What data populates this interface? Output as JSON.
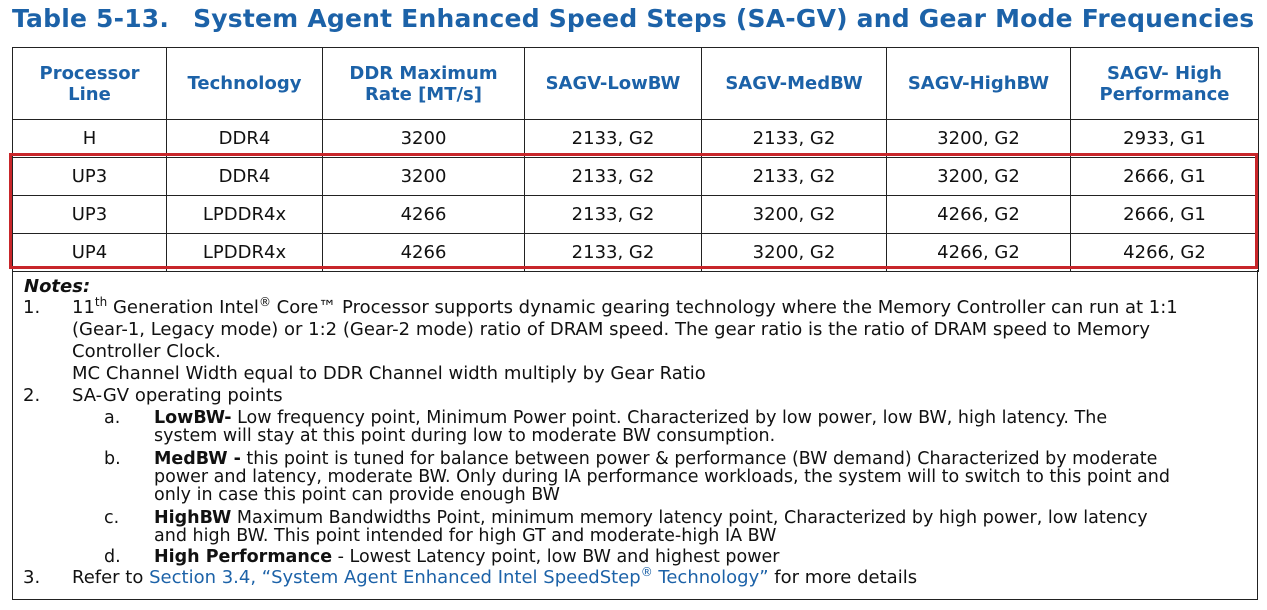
{
  "title": {
    "number": "Table 5-13.",
    "text": "System Agent Enhanced Speed Steps (SA-GV) and Gear Mode Frequencies"
  },
  "table": {
    "headers": [
      [
        "Processor",
        "Line"
      ],
      [
        "Technology"
      ],
      [
        "DDR Maximum",
        "Rate [MT/s]"
      ],
      [
        "SAGV-LowBW"
      ],
      [
        "SAGV-MedBW"
      ],
      [
        "SAGV-HighBW"
      ],
      [
        "SAGV- High",
        "Performance"
      ]
    ],
    "rows": [
      [
        "H",
        "DDR4",
        "3200",
        "2133, G2",
        "2133, G2",
        "3200, G2",
        "2933, G1"
      ],
      [
        "UP3",
        "DDR4",
        "3200",
        "2133, G2",
        "2133, G2",
        "3200, G2",
        "2666, G1"
      ],
      [
        "UP3",
        "LPDDR4x",
        "4266",
        "2133, G2",
        "3200, G2",
        "4266, G2",
        "2666, G1"
      ],
      [
        "UP4",
        "LPDDR4x",
        "4266",
        "2133, G2",
        "3200, G2",
        "4266, G2",
        "4266, G2"
      ]
    ]
  },
  "notes": {
    "title": "Notes:",
    "n1": {
      "num": "1.",
      "l1_pre": "11",
      "l1_sup": "th",
      "l1_mid": " Generation Intel",
      "l1_reg": "®",
      "l1_post": " Core™ Processor supports dynamic gearing technology where the Memory Controller can run at 1:1",
      "l2": "(Gear-1, Legacy mode) or 1:2 (Gear-2 mode) ratio of DRAM speed. The gear ratio is the ratio of DRAM speed to Memory",
      "l3": "Controller Clock.",
      "l4": "MC Channel Width equal to DDR Channel width multiply by Gear Ratio"
    },
    "n2": {
      "num": "2.",
      "text": "SA-GV operating points",
      "a": {
        "letter": "a.",
        "label": "LowBW-",
        "l1": " Low frequency point, Minimum Power point. Characterized by low power, low BW, high latency. The",
        "l2": "system will stay at this point during low to moderate BW consumption."
      },
      "b": {
        "letter": "b.",
        "label": "MedBW -",
        "l1": " this point is tuned for balance between power & performance (BW demand) Characterized by moderate",
        "l2": "power and latency, moderate BW. Only during IA performance workloads, the system will to switch to this point and",
        "l3": "only in case this point can provide enough BW"
      },
      "c": {
        "letter": "c.",
        "label": "HighBW",
        "l1": " Maximum Bandwidths Point, minimum memory latency point, Characterized by high power, low latency",
        "l2": "and high BW. This point intended for high GT and moderate-high IA BW"
      },
      "d": {
        "letter": "d.",
        "label": "High Performance",
        "l1": " - Lowest Latency point, low BW and highest power"
      }
    },
    "n3": {
      "num": "3.",
      "pre": "Refer to ",
      "link_pre": "Section 3.4, “System Agent Enhanced Intel SpeedStep",
      "link_reg": "®",
      "link_post": " Technology”",
      "post": " for more details"
    }
  },
  "colors": {
    "heading_blue": "#1c62a8",
    "highlight_red": "#c8262a"
  }
}
